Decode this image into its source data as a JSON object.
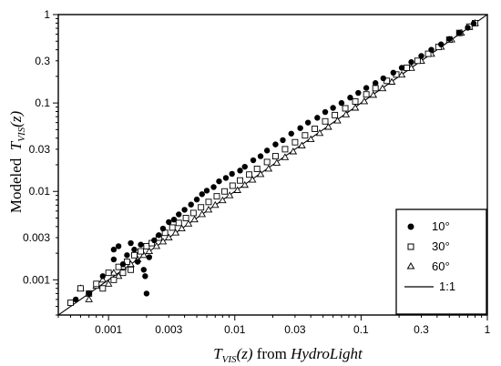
{
  "chart_data": {
    "type": "scatter",
    "title": "",
    "xlabel": {
      "main": "T",
      "sub": "VIS",
      "arg": "(z)",
      "mid": " from ",
      "source": "HydroLight"
    },
    "ylabel": {
      "prefix": "Modeled  ",
      "main": "T",
      "sub": "VIS",
      "arg": "(z)"
    },
    "x_scale": "log",
    "y_scale": "log",
    "xlim": [
      0.0004,
      1
    ],
    "ylim": [
      0.0004,
      1
    ],
    "x_ticks": [
      {
        "value": 0.001,
        "label": "0.001"
      },
      {
        "value": 0.003,
        "label": "0.003"
      },
      {
        "value": 0.01,
        "label": "0.01"
      },
      {
        "value": 0.03,
        "label": "0.03"
      },
      {
        "value": 0.1,
        "label": "0.1"
      },
      {
        "value": 0.3,
        "label": "0.3"
      },
      {
        "value": 1,
        "label": "1"
      }
    ],
    "y_ticks": [
      {
        "value": 0.001,
        "label": "0.001"
      },
      {
        "value": 0.003,
        "label": "0.003"
      },
      {
        "value": 0.01,
        "label": "0.01"
      },
      {
        "value": 0.03,
        "label": "0.03"
      },
      {
        "value": 0.1,
        "label": "0.1"
      },
      {
        "value": 0.3,
        "label": "0.3"
      },
      {
        "value": 1,
        "label": "1"
      }
    ],
    "grid": false,
    "legend_position": "bottom-right",
    "series": [
      {
        "name": "10°",
        "marker": "filled-circle",
        "points": [
          [
            0.00055,
            0.0006
          ],
          [
            0.0007,
            0.0007
          ],
          [
            0.0009,
            0.0011
          ],
          [
            0.0011,
            0.0017
          ],
          [
            0.0011,
            0.0022
          ],
          [
            0.0012,
            0.0024
          ],
          [
            0.0013,
            0.0015
          ],
          [
            0.0014,
            0.0019
          ],
          [
            0.0015,
            0.0026
          ],
          [
            0.0016,
            0.0022
          ],
          [
            0.0017,
            0.0016
          ],
          [
            0.0018,
            0.0025
          ],
          [
            0.0019,
            0.0013
          ],
          [
            0.00195,
            0.0011
          ],
          [
            0.002,
            0.0007
          ],
          [
            0.0021,
            0.0018
          ],
          [
            0.0023,
            0.0028
          ],
          [
            0.0025,
            0.0032
          ],
          [
            0.0027,
            0.0038
          ],
          [
            0.003,
            0.0045
          ],
          [
            0.0033,
            0.0048
          ],
          [
            0.0036,
            0.0055
          ],
          [
            0.004,
            0.0062
          ],
          [
            0.0045,
            0.0071
          ],
          [
            0.005,
            0.0081
          ],
          [
            0.0055,
            0.0093
          ],
          [
            0.006,
            0.0102
          ],
          [
            0.0068,
            0.0112
          ],
          [
            0.0075,
            0.013
          ],
          [
            0.0085,
            0.0142
          ],
          [
            0.0095,
            0.0158
          ],
          [
            0.011,
            0.0172
          ],
          [
            0.012,
            0.019
          ],
          [
            0.014,
            0.0225
          ],
          [
            0.016,
            0.025
          ],
          [
            0.018,
            0.029
          ],
          [
            0.021,
            0.034
          ],
          [
            0.024,
            0.038
          ],
          [
            0.028,
            0.045
          ],
          [
            0.033,
            0.052
          ],
          [
            0.038,
            0.06
          ],
          [
            0.045,
            0.068
          ],
          [
            0.052,
            0.079
          ],
          [
            0.06,
            0.088
          ],
          [
            0.07,
            0.1
          ],
          [
            0.082,
            0.115
          ],
          [
            0.095,
            0.13
          ],
          [
            0.11,
            0.148
          ],
          [
            0.13,
            0.168
          ],
          [
            0.15,
            0.19
          ],
          [
            0.18,
            0.22
          ],
          [
            0.21,
            0.25
          ],
          [
            0.25,
            0.29
          ],
          [
            0.3,
            0.34
          ],
          [
            0.36,
            0.4
          ],
          [
            0.43,
            0.46
          ],
          [
            0.5,
            0.53
          ],
          [
            0.6,
            0.62
          ],
          [
            0.7,
            0.71
          ],
          [
            0.78,
            0.79
          ]
        ]
      },
      {
        "name": "30°",
        "marker": "open-square",
        "points": [
          [
            0.0005,
            0.00055
          ],
          [
            0.0006,
            0.0008
          ],
          [
            0.0007,
            0.0007
          ],
          [
            0.0008,
            0.0009
          ],
          [
            0.0009,
            0.0008
          ],
          [
            0.001,
            0.0012
          ],
          [
            0.0011,
            0.001
          ],
          [
            0.0012,
            0.0014
          ],
          [
            0.0013,
            0.0012
          ],
          [
            0.0014,
            0.0016
          ],
          [
            0.0015,
            0.0013
          ],
          [
            0.0016,
            0.0019
          ],
          [
            0.0018,
            0.0021
          ],
          [
            0.002,
            0.0024
          ],
          [
            0.0022,
            0.0026
          ],
          [
            0.0025,
            0.003
          ],
          [
            0.0028,
            0.0034
          ],
          [
            0.0032,
            0.0039
          ],
          [
            0.0036,
            0.0044
          ],
          [
            0.0041,
            0.005
          ],
          [
            0.0047,
            0.0057
          ],
          [
            0.0054,
            0.0066
          ],
          [
            0.0062,
            0.0076
          ],
          [
            0.0072,
            0.0088
          ],
          [
            0.0083,
            0.01
          ],
          [
            0.0096,
            0.0116
          ],
          [
            0.011,
            0.0133
          ],
          [
            0.013,
            0.0155
          ],
          [
            0.015,
            0.018
          ],
          [
            0.018,
            0.0215
          ],
          [
            0.021,
            0.025
          ],
          [
            0.025,
            0.03
          ],
          [
            0.03,
            0.036
          ],
          [
            0.036,
            0.043
          ],
          [
            0.043,
            0.051
          ],
          [
            0.052,
            0.062
          ],
          [
            0.062,
            0.073
          ],
          [
            0.075,
            0.087
          ],
          [
            0.09,
            0.104
          ],
          [
            0.11,
            0.125
          ],
          [
            0.13,
            0.147
          ],
          [
            0.16,
            0.178
          ],
          [
            0.19,
            0.21
          ],
          [
            0.23,
            0.25
          ],
          [
            0.28,
            0.3
          ],
          [
            0.34,
            0.36
          ],
          [
            0.41,
            0.43
          ],
          [
            0.5,
            0.52
          ],
          [
            0.6,
            0.62
          ],
          [
            0.72,
            0.73
          ],
          [
            0.8,
            0.8
          ]
        ]
      },
      {
        "name": "60°",
        "marker": "open-triangle",
        "points": [
          [
            0.0006,
            0.0008
          ],
          [
            0.0007,
            0.0006
          ],
          [
            0.0008,
            0.00085
          ],
          [
            0.0009,
            0.001
          ],
          [
            0.001,
            0.0009
          ],
          [
            0.0011,
            0.0012
          ],
          [
            0.0012,
            0.0011
          ],
          [
            0.0013,
            0.0014
          ],
          [
            0.0015,
            0.0015
          ],
          [
            0.0017,
            0.0017
          ],
          [
            0.0019,
            0.0019
          ],
          [
            0.0021,
            0.0021
          ],
          [
            0.0024,
            0.0024
          ],
          [
            0.0027,
            0.0027
          ],
          [
            0.003,
            0.003
          ],
          [
            0.0034,
            0.0034
          ],
          [
            0.0038,
            0.0038
          ],
          [
            0.0043,
            0.0043
          ],
          [
            0.0048,
            0.0048
          ],
          [
            0.0055,
            0.0055
          ],
          [
            0.0062,
            0.0062
          ],
          [
            0.007,
            0.007
          ],
          [
            0.008,
            0.0079
          ],
          [
            0.0091,
            0.009
          ],
          [
            0.0105,
            0.0103
          ],
          [
            0.012,
            0.0118
          ],
          [
            0.0138,
            0.0135
          ],
          [
            0.016,
            0.0156
          ],
          [
            0.0185,
            0.018
          ],
          [
            0.0215,
            0.021
          ],
          [
            0.025,
            0.0243
          ],
          [
            0.029,
            0.0282
          ],
          [
            0.034,
            0.033
          ],
          [
            0.04,
            0.0388
          ],
          [
            0.047,
            0.0455
          ],
          [
            0.055,
            0.0535
          ],
          [
            0.065,
            0.063
          ],
          [
            0.076,
            0.074
          ],
          [
            0.09,
            0.088
          ],
          [
            0.106,
            0.104
          ],
          [
            0.125,
            0.123
          ],
          [
            0.148,
            0.146
          ],
          [
            0.175,
            0.173
          ],
          [
            0.21,
            0.208
          ],
          [
            0.25,
            0.248
          ],
          [
            0.3,
            0.298
          ],
          [
            0.36,
            0.358
          ],
          [
            0.43,
            0.43
          ],
          [
            0.52,
            0.52
          ],
          [
            0.62,
            0.62
          ],
          [
            0.72,
            0.72
          ],
          [
            0.8,
            0.8
          ]
        ]
      }
    ],
    "reference_line": {
      "name": "1:1",
      "from": [
        0.0004,
        0.0004
      ],
      "to": [
        1,
        1
      ]
    },
    "legend": [
      {
        "label": "10°",
        "marker": "filled-circle"
      },
      {
        "label": "30°",
        "marker": "open-square"
      },
      {
        "label": "60°",
        "marker": "open-triangle"
      },
      {
        "label": "1:1",
        "marker": "line"
      }
    ]
  }
}
